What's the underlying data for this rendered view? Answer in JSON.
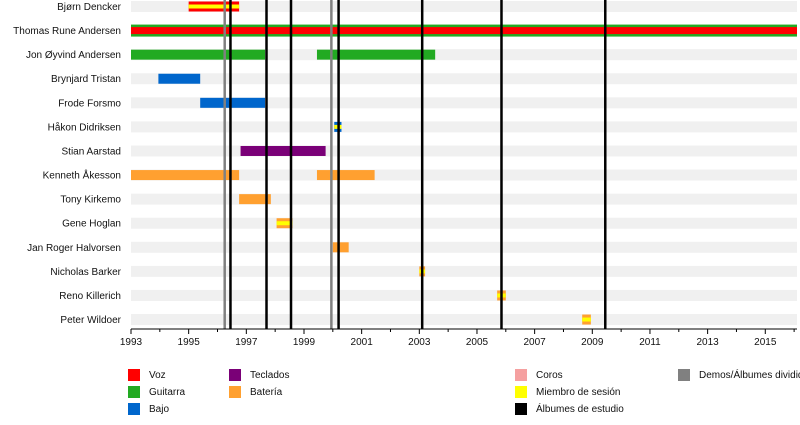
{
  "chart_data": {
    "type": "timeline",
    "title": "",
    "xlabel": "",
    "ylabel": "",
    "xlim": [
      1993,
      2016.1
    ],
    "x_ticks": [
      1993,
      1995,
      1997,
      1999,
      2001,
      2003,
      2005,
      2007,
      2009,
      2011,
      2013,
      2015
    ],
    "x_minor_ticks": [
      1994,
      1996,
      1998,
      2000,
      2002,
      2004,
      2006,
      2008,
      2010,
      2012,
      2014,
      2016
    ],
    "roles": [
      {
        "id": "voz",
        "label": "Voz",
        "color": "#ff0000"
      },
      {
        "id": "guitarra",
        "label": "Guitarra",
        "color": "#22aa22"
      },
      {
        "id": "bajo",
        "label": "Bajo",
        "color": "#0066cc"
      },
      {
        "id": "teclados",
        "label": "Teclados",
        "color": "#7a0077"
      },
      {
        "id": "bateria",
        "label": "Batería",
        "color": "#ffa030"
      },
      {
        "id": "coros",
        "label": "Coros",
        "color": "#f5a0a0"
      },
      {
        "id": "sesion",
        "label": "Miembro de sesión",
        "color": "#ffff00"
      },
      {
        "id": "estudio",
        "label": "Álbumes de estudio",
        "color": "#000000"
      },
      {
        "id": "demos",
        "label": "Demos/Álbumes divididos",
        "color": "#808080"
      }
    ],
    "members": [
      {
        "name": "Bjørn Dencker",
        "bars": [
          {
            "start": 1995.0,
            "end": 1996.75,
            "role": "voz",
            "session": true
          }
        ]
      },
      {
        "name": "Thomas Rune Andersen",
        "bars": [
          {
            "start": 1993.0,
            "end": 2016.1,
            "role": "voz",
            "second": "guitarra"
          }
        ]
      },
      {
        "name": "Jon Øyvind Andersen",
        "bars": [
          {
            "start": 1993.0,
            "end": 1997.65,
            "role": "guitarra"
          },
          {
            "start": 1999.45,
            "end": 2003.55,
            "role": "guitarra"
          }
        ]
      },
      {
        "name": "Brynjard Tristan",
        "bars": [
          {
            "start": 1993.95,
            "end": 1995.4,
            "role": "bajo"
          }
        ]
      },
      {
        "name": "Frode Forsmo",
        "bars": [
          {
            "start": 1995.4,
            "end": 1997.65,
            "role": "bajo"
          }
        ]
      },
      {
        "name": "Håkon Didriksen",
        "bars": [
          {
            "start": 2000.05,
            "end": 2000.3,
            "role": "bajo",
            "session": true
          }
        ]
      },
      {
        "name": "Stian Aarstad",
        "bars": [
          {
            "start": 1996.8,
            "end": 1999.75,
            "role": "teclados"
          }
        ]
      },
      {
        "name": "Kenneth Åkesson",
        "bars": [
          {
            "start": 1993.0,
            "end": 1996.75,
            "role": "bateria"
          },
          {
            "start": 1999.45,
            "end": 2001.45,
            "role": "bateria"
          }
        ]
      },
      {
        "name": "Tony Kirkemo",
        "bars": [
          {
            "start": 1996.75,
            "end": 1997.85,
            "role": "bateria"
          }
        ]
      },
      {
        "name": "Gene Hoglan",
        "bars": [
          {
            "start": 1998.05,
            "end": 1998.6,
            "role": "bateria",
            "session": true
          }
        ]
      },
      {
        "name": "Jan Roger Halvorsen",
        "bars": [
          {
            "start": 2000.0,
            "end": 2000.55,
            "role": "bateria"
          }
        ]
      },
      {
        "name": "Nicholas Barker",
        "bars": [
          {
            "start": 2003.0,
            "end": 2003.2,
            "role": "bateria",
            "session": true
          }
        ]
      },
      {
        "name": "Reno Killerich",
        "bars": [
          {
            "start": 2005.7,
            "end": 2006.0,
            "role": "bateria",
            "session": true
          }
        ]
      },
      {
        "name": "Peter Wildoer",
        "bars": [
          {
            "start": 2008.65,
            "end": 2008.95,
            "role": "bateria",
            "session": true
          }
        ]
      }
    ],
    "studio_albums": [
      1996.45,
      1997.7,
      1998.55,
      2000.2,
      2003.1,
      2005.85,
      2009.45
    ],
    "demos_splits": [
      1996.25,
      1999.95
    ]
  }
}
